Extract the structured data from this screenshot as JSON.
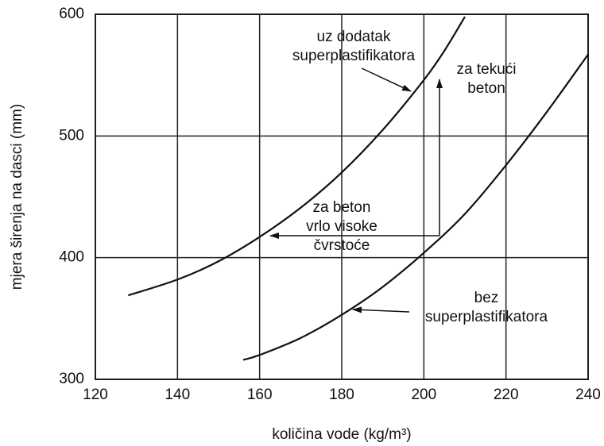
{
  "chart_data": {
    "type": "line",
    "xlabel": "količina vode (kg/m³)",
    "ylabel": "mjera širenja na dasci (mm)",
    "xlim": [
      120,
      240
    ],
    "xticks": [
      120,
      140,
      160,
      180,
      200,
      220,
      240
    ],
    "ylim": [
      300,
      600
    ],
    "yticks": [
      300,
      400,
      500,
      600
    ],
    "grid": true,
    "series": [
      {
        "label": [
          "uz dodatak",
          "superplastifikatora"
        ],
        "color": "#111111",
        "x": [
          128,
          140,
          150,
          160,
          170,
          180,
          190,
          200,
          205,
          210
        ],
        "values": [
          369,
          382,
          397,
          417,
          441,
          470,
          505,
          546,
          570,
          598
        ]
      },
      {
        "label": [
          "bez",
          "superplastifikatora"
        ],
        "color": "#111111",
        "x": [
          156,
          160,
          170,
          180,
          190,
          200,
          210,
          220,
          230,
          240
        ],
        "values": [
          316,
          320,
          334,
          353,
          376,
          404,
          436,
          476,
          520,
          567
        ]
      }
    ],
    "annotations": [
      [
        "za tekući",
        "beton"
      ],
      [
        "za beton",
        "vrlo visoke",
        "čvrstoće"
      ]
    ]
  }
}
